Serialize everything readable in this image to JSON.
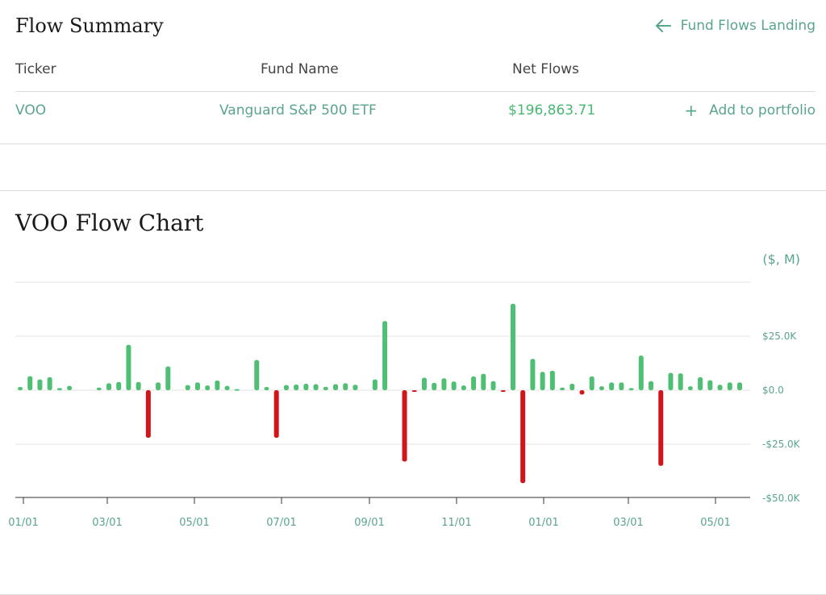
{
  "summary": {
    "title": "Flow Summary",
    "back_link": "Fund Flows Landing",
    "columns": [
      "Ticker",
      "Fund Name",
      "Net Flows"
    ],
    "row": {
      "ticker": "VOO",
      "fund_name": "Vanguard S&P 500 ETF",
      "net_flows": "$196,863.71"
    },
    "add_label": "Add to portfolio"
  },
  "colors": {
    "accent": "#5aa58a",
    "positive": "#4fbf73",
    "negative": "#d0161b"
  },
  "chart_data": {
    "type": "bar",
    "title": "VOO Flow Chart",
    "unit_label": "($, M)",
    "ylim": [
      -50000,
      50000
    ],
    "y_ticks": [
      25000,
      0,
      -25000,
      -50000
    ],
    "y_tick_labels": [
      "$25.0K",
      "$0.0",
      "-$25.0K",
      "-$50.0K"
    ],
    "x_tick_labels": [
      "01/01",
      "03/01",
      "05/01",
      "07/01",
      "09/01",
      "11/01",
      "01/01",
      "03/01",
      "05/01"
    ],
    "grid": true,
    "values": [
      1500,
      6500,
      5000,
      6000,
      1000,
      2000,
      0,
      0,
      1200,
      3200,
      3800,
      21000,
      3800,
      -22000,
      3600,
      11000,
      0,
      2400,
      3600,
      2200,
      4500,
      2000,
      500,
      0,
      14000,
      1500,
      -22000,
      2400,
      2600,
      3000,
      2800,
      1600,
      2800,
      3200,
      2500,
      0,
      5000,
      32000,
      0,
      -33000,
      -400,
      5800,
      3400,
      5500,
      4000,
      2200,
      6400,
      7600,
      4200,
      -600,
      40000,
      -43000,
      14500,
      8500,
      9000,
      1200,
      3000,
      -2000,
      6400,
      1800,
      3600,
      3600,
      1000,
      16000,
      4200,
      -35000,
      8000,
      7800,
      1800,
      6000,
      4600,
      2500,
      3600,
      3600
    ]
  }
}
